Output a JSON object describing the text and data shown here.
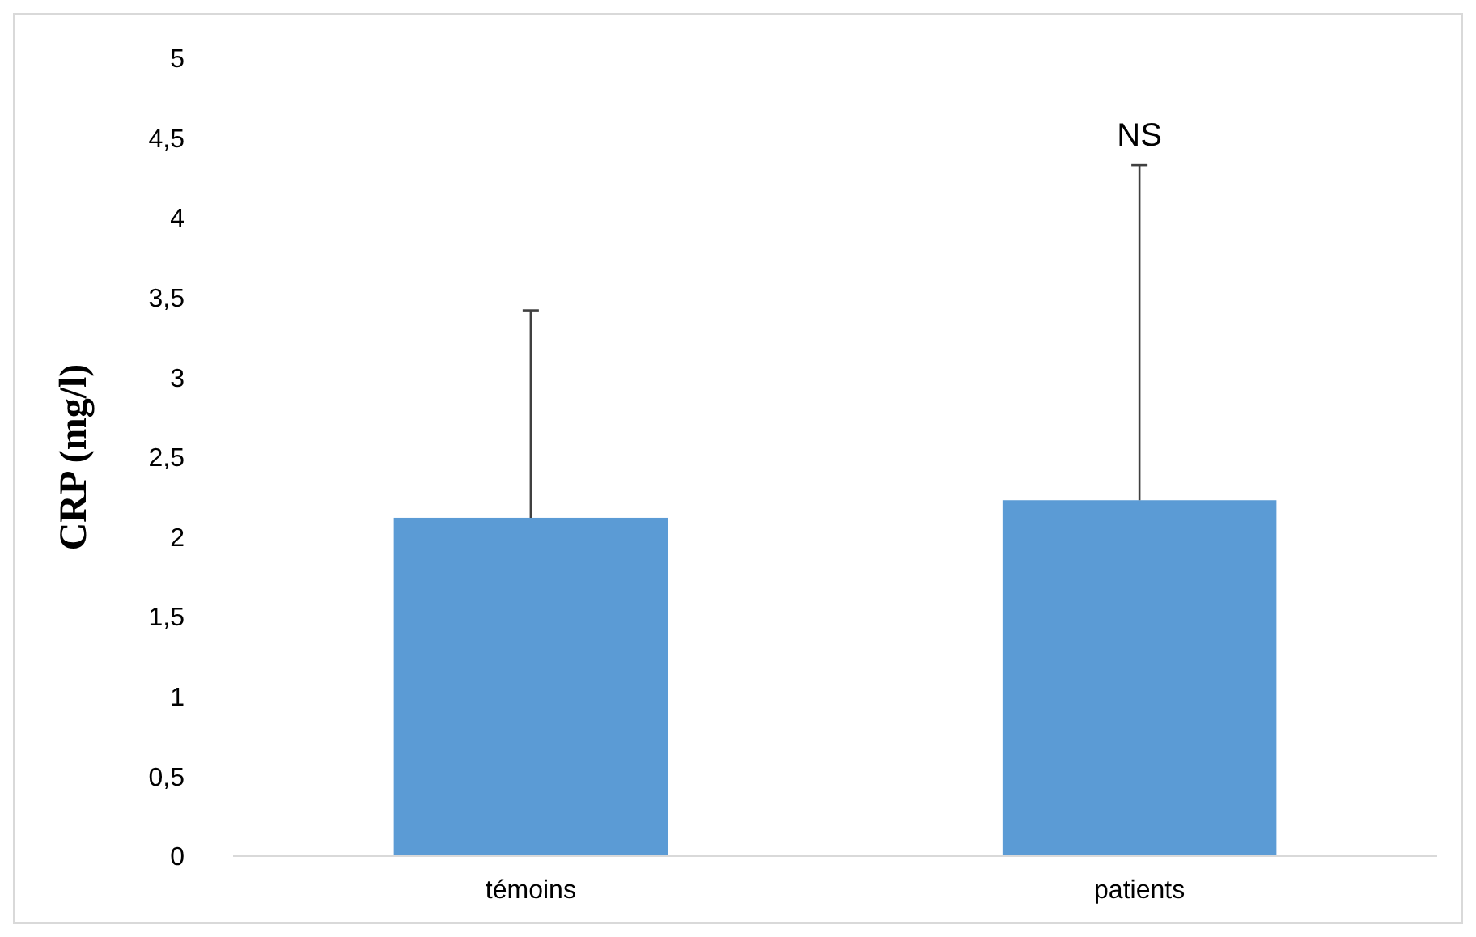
{
  "chart_data": {
    "type": "bar",
    "ylabel": "CRP (mg/l)",
    "categories": [
      "témoins",
      "patients"
    ],
    "values": [
      2.12,
      2.23
    ],
    "color": "#5b9bd5",
    "errors": [
      [
        2.12,
        3.42
      ],
      [
        2.23,
        4.33
      ]
    ],
    "ylim": [
      0,
      5
    ],
    "yticks": [
      0,
      {
        "value": 0.5,
        "label": "0,5"
      },
      1,
      {
        "value": 1.5,
        "label": "1,5"
      },
      2,
      {
        "value": 2.5,
        "label": "2,5"
      },
      3,
      {
        "value": 3.5,
        "label": "3,5"
      },
      4,
      {
        "value": 4.5,
        "label": "4,5"
      },
      5
    ],
    "annotations": [
      "NS"
    ],
    "grid": false
  }
}
